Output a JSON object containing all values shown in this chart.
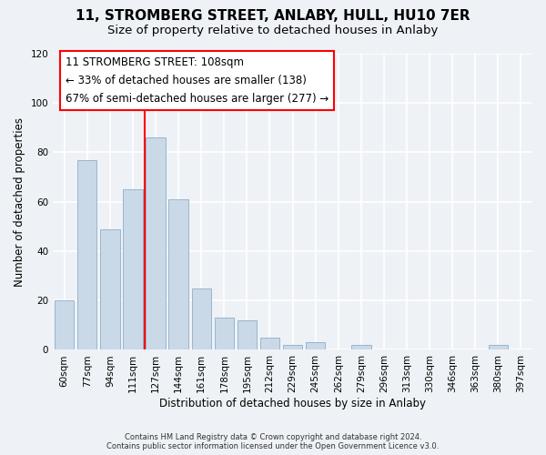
{
  "title": "11, STROMBERG STREET, ANLABY, HULL, HU10 7ER",
  "subtitle": "Size of property relative to detached houses in Anlaby",
  "xlabel": "Distribution of detached houses by size in Anlaby",
  "ylabel": "Number of detached properties",
  "footer_line1": "Contains HM Land Registry data © Crown copyright and database right 2024.",
  "footer_line2": "Contains public sector information licensed under the Open Government Licence v3.0.",
  "bar_labels": [
    "60sqm",
    "77sqm",
    "94sqm",
    "111sqm",
    "127sqm",
    "144sqm",
    "161sqm",
    "178sqm",
    "195sqm",
    "212sqm",
    "229sqm",
    "245sqm",
    "262sqm",
    "279sqm",
    "296sqm",
    "313sqm",
    "330sqm",
    "346sqm",
    "363sqm",
    "380sqm",
    "397sqm"
  ],
  "bar_values": [
    20,
    77,
    49,
    65,
    86,
    61,
    25,
    13,
    12,
    5,
    2,
    3,
    0,
    2,
    0,
    0,
    0,
    0,
    0,
    2,
    0
  ],
  "bar_color": "#c9d9e8",
  "bar_edge_color": "#9ab5cb",
  "vline_x": 3.5,
  "vline_color": "red",
  "annotation_title": "11 STROMBERG STREET: 108sqm",
  "annotation_line2": "← 33% of detached houses are smaller (138)",
  "annotation_line3": "67% of semi-detached houses are larger (277) →",
  "annotation_box_color": "#ffffff",
  "annotation_border_color": "red",
  "ylim": [
    0,
    120
  ],
  "yticks": [
    0,
    20,
    40,
    60,
    80,
    100,
    120
  ],
  "background_color": "#eef2f6",
  "plot_background": "#eef2f6",
  "grid_color": "#ffffff",
  "title_fontsize": 11,
  "subtitle_fontsize": 9.5
}
